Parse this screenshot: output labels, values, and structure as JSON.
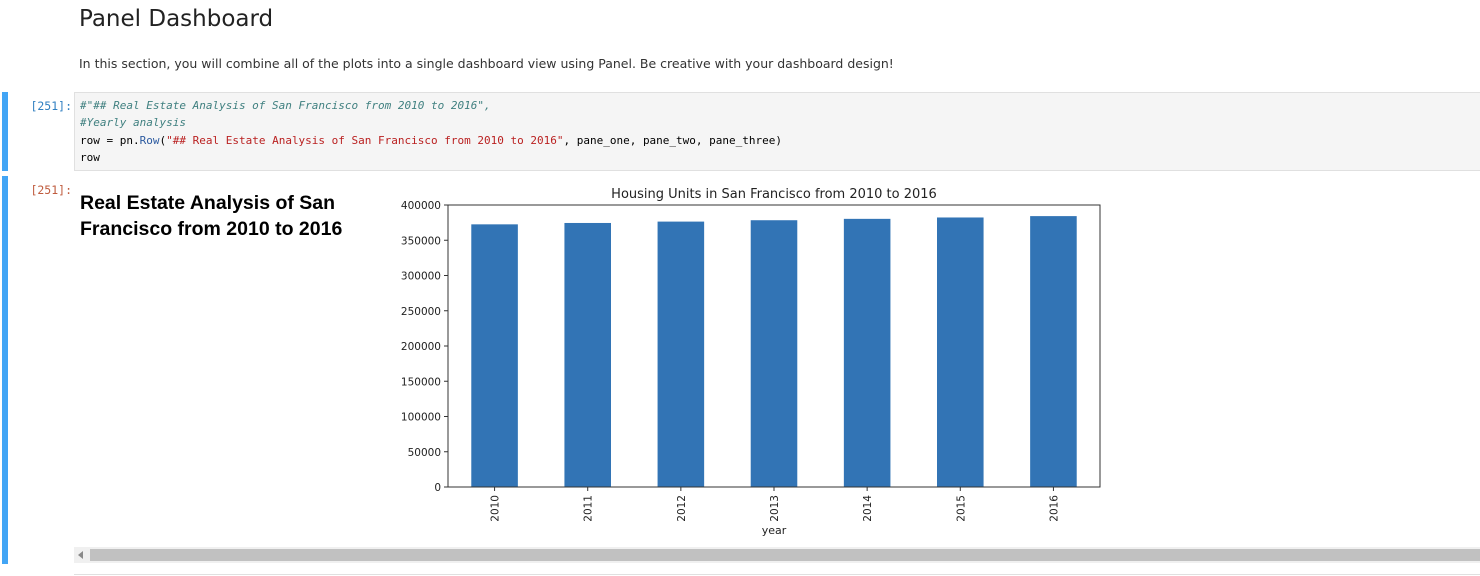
{
  "markdown": {
    "title": "Panel Dashboard",
    "text": "In this section, you will combine all of the plots into a single dashboard view using Panel. Be creative with your dashboard design!"
  },
  "cell": {
    "in_prompt": "[251]:",
    "out_prompt": "[251]:",
    "code": {
      "line1": "#\"## Real Estate Analysis of San Francisco from 2010 to 2016\",",
      "line2": "#Yearly analysis",
      "line3_pre": "row = pn.",
      "line3_fn": "Row",
      "line3_open": "(",
      "line3_str": "\"## Real Estate Analysis of San Francisco from 2010 to 2016\"",
      "line3_post": ", pane_one, pane_two, pane_three)",
      "line4": "row"
    }
  },
  "output": {
    "heading": "Real Estate Analysis of San Francisco from 2010 to 2016"
  },
  "colors": {
    "bar": "#3274b5",
    "accent": "#42a5f5"
  },
  "chart_data": {
    "type": "bar",
    "title": "Housing Units in San Francisco from 2010 to 2016",
    "xlabel": "year",
    "ylabel": "",
    "categories": [
      "2010",
      "2011",
      "2012",
      "2013",
      "2014",
      "2015",
      "2016"
    ],
    "values": [
      372560,
      374507,
      376454,
      378401,
      380348,
      382295,
      384242
    ],
    "ylim": [
      0,
      400000
    ],
    "yticks": [
      0,
      50000,
      100000,
      150000,
      200000,
      250000,
      300000,
      350000,
      400000
    ],
    "ytick_labels": [
      "0",
      "50000",
      "100000",
      "150000",
      "200000",
      "250000",
      "300000",
      "350000",
      "400000"
    ],
    "grid": false,
    "legend": "none"
  }
}
